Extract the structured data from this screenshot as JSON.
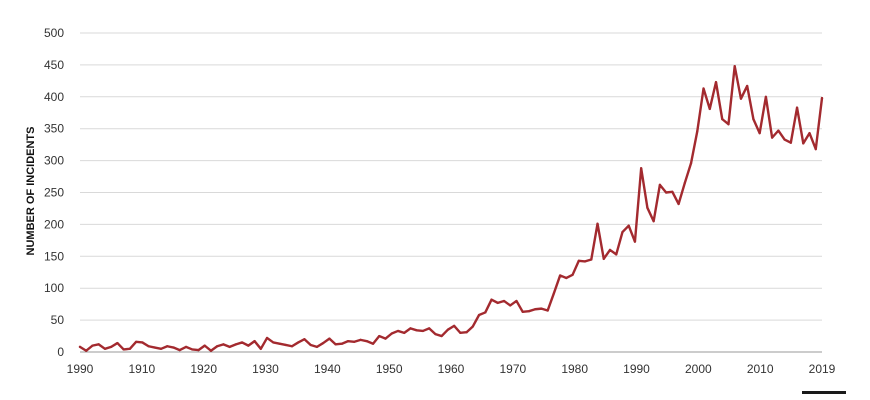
{
  "chart_data": {
    "type": "line",
    "title": "",
    "xlabel": "",
    "ylabel": "NUMBER OF INCIDENTS",
    "xlim": [
      1990,
      2019
    ],
    "ylim": [
      0,
      500
    ],
    "y_ticks": [
      0,
      50,
      100,
      150,
      200,
      250,
      300,
      350,
      400,
      450,
      500
    ],
    "x_tick_labels": [
      "1990",
      "1910",
      "1920",
      "1930",
      "1940",
      "1950",
      "1960",
      "1970",
      "1980",
      "1990",
      "2000",
      "2010",
      "2019"
    ],
    "grid": true,
    "line_color": "#a32a2f",
    "series": [
      {
        "values": [
          8,
          2,
          10,
          12,
          5,
          8,
          14,
          4,
          5,
          16,
          15,
          9,
          7,
          5,
          9,
          7,
          3,
          8,
          4,
          3,
          10,
          2,
          9,
          12,
          8,
          12,
          15,
          10,
          17,
          5,
          22,
          15,
          13,
          11,
          9,
          15,
          20,
          11,
          8,
          14,
          21,
          12,
          13,
          17,
          16,
          19,
          17,
          13,
          25,
          21,
          29,
          33,
          30,
          37,
          34,
          33,
          37,
          28,
          25,
          35,
          41,
          30,
          31,
          40,
          58,
          62,
          82,
          77,
          80,
          73,
          80,
          63,
          64,
          67,
          68,
          65,
          92,
          120,
          116,
          121,
          143,
          142,
          145,
          201,
          146,
          160,
          153,
          188,
          198,
          173,
          288,
          226,
          205,
          262,
          250,
          251,
          232,
          265,
          296,
          346,
          413,
          381,
          423,
          365,
          357,
          448,
          397,
          417,
          365,
          343,
          400,
          336,
          347,
          333,
          328,
          383,
          327,
          343,
          318,
          398
        ]
      }
    ]
  }
}
